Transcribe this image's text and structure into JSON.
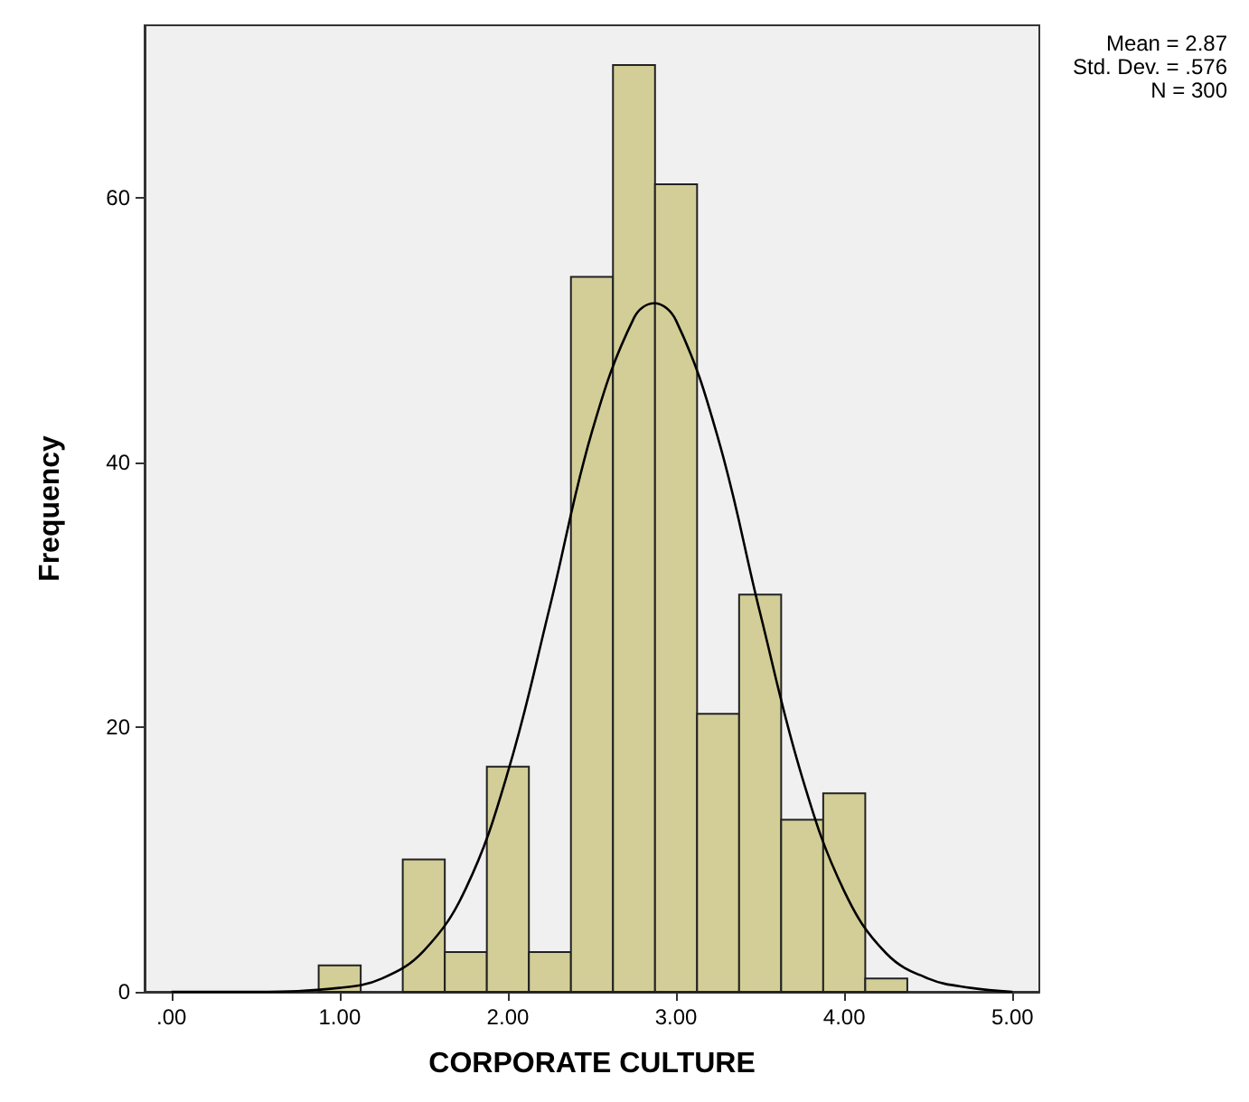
{
  "chart_data": {
    "type": "histogram",
    "xlabel": "CORPORATE CULTURE",
    "ylabel": "Frequency",
    "bins": [
      0.875,
      1.125,
      1.375,
      1.625,
      1.875,
      2.125,
      2.375,
      2.625,
      2.875,
      3.125,
      3.375,
      3.625,
      3.875,
      4.125,
      4.375
    ],
    "values": [
      2,
      0,
      10,
      3,
      17,
      3,
      54,
      70,
      61,
      21,
      30,
      13,
      15,
      1
    ],
    "color": "#d3ce97",
    "series": [
      {
        "type": "line",
        "color": "#000000",
        "x": [
          0,
          0.5,
          1,
          1.25,
          1.5,
          1.75,
          2,
          2.25,
          2.5,
          2.75,
          2.87,
          3,
          3.25,
          3.5,
          3.75,
          4,
          4.25,
          4.5,
          4.75,
          5
        ],
        "values": [
          0,
          0,
          0.3,
          1,
          3.1,
          7.8,
          16.6,
          29.1,
          42.3,
          50.9,
          52,
          50.7,
          41.8,
          28.6,
          16.2,
          7.6,
          2.9,
          1,
          0.3,
          0
        ]
      }
    ],
    "xlim": [
      -0.16,
      5.16
    ],
    "xticks": [
      {
        "value": 0,
        "label": ".00"
      },
      {
        "value": 1,
        "label": "1.00"
      },
      {
        "value": 2,
        "label": "2.00"
      },
      {
        "value": 3,
        "label": "3.00"
      },
      {
        "value": 4,
        "label": "4.00"
      },
      {
        "value": 5,
        "label": "5.00"
      }
    ],
    "ylim": [
      0,
      73
    ],
    "yticks": [
      0,
      20,
      40,
      60
    ],
    "annotations": [
      "Mean = 2.87",
      "Std. Dev. = .576",
      "N = 300"
    ],
    "grid": false,
    "marker": "none"
  }
}
